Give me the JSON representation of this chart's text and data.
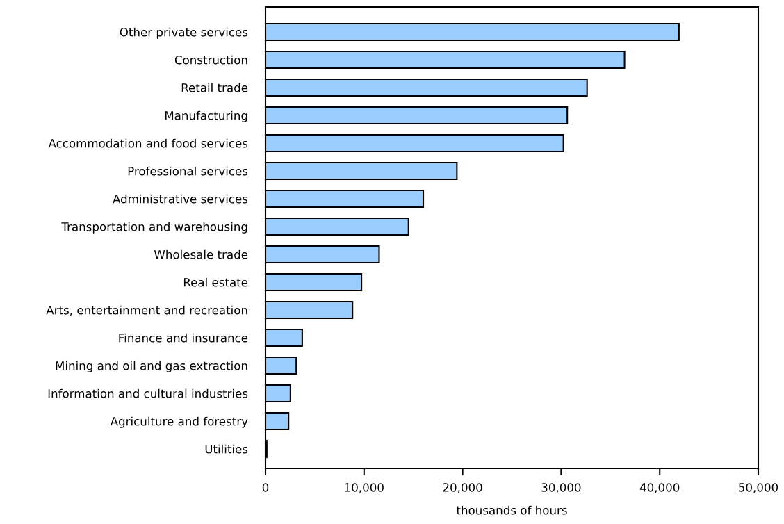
{
  "chart_data": {
    "type": "bar",
    "orientation": "horizontal",
    "xlabel": "thousands of hours",
    "categories": [
      "Other private services",
      "Construction",
      "Retail trade",
      "Manufacturing",
      "Accommodation and food services",
      "Professional services",
      "Administrative services",
      "Transportation and warehousing",
      "Wholesale trade",
      "Real estate",
      "Arts, entertainment and recreation",
      "Finance and insurance",
      "Mining and oil and gas extraction",
      "Information and cultural industries",
      "Agriculture and forestry",
      "Utilities"
    ],
    "values": [
      41950,
      36430,
      32630,
      30620,
      30230,
      19420,
      16010,
      14510,
      11530,
      9740,
      8830,
      3730,
      3120,
      2530,
      2340,
      130
    ],
    "color": "#99ccff",
    "xlim": [
      0,
      50000
    ],
    "xticks": [
      {
        "value": 0,
        "label": "0"
      },
      {
        "value": 10000,
        "label": "10,000"
      },
      {
        "value": 20000,
        "label": "20,000"
      },
      {
        "value": 30000,
        "label": "30,000"
      },
      {
        "value": 40000,
        "label": "40,000"
      },
      {
        "value": 50000,
        "label": "50,000"
      }
    ],
    "grid": false,
    "legend": false
  }
}
